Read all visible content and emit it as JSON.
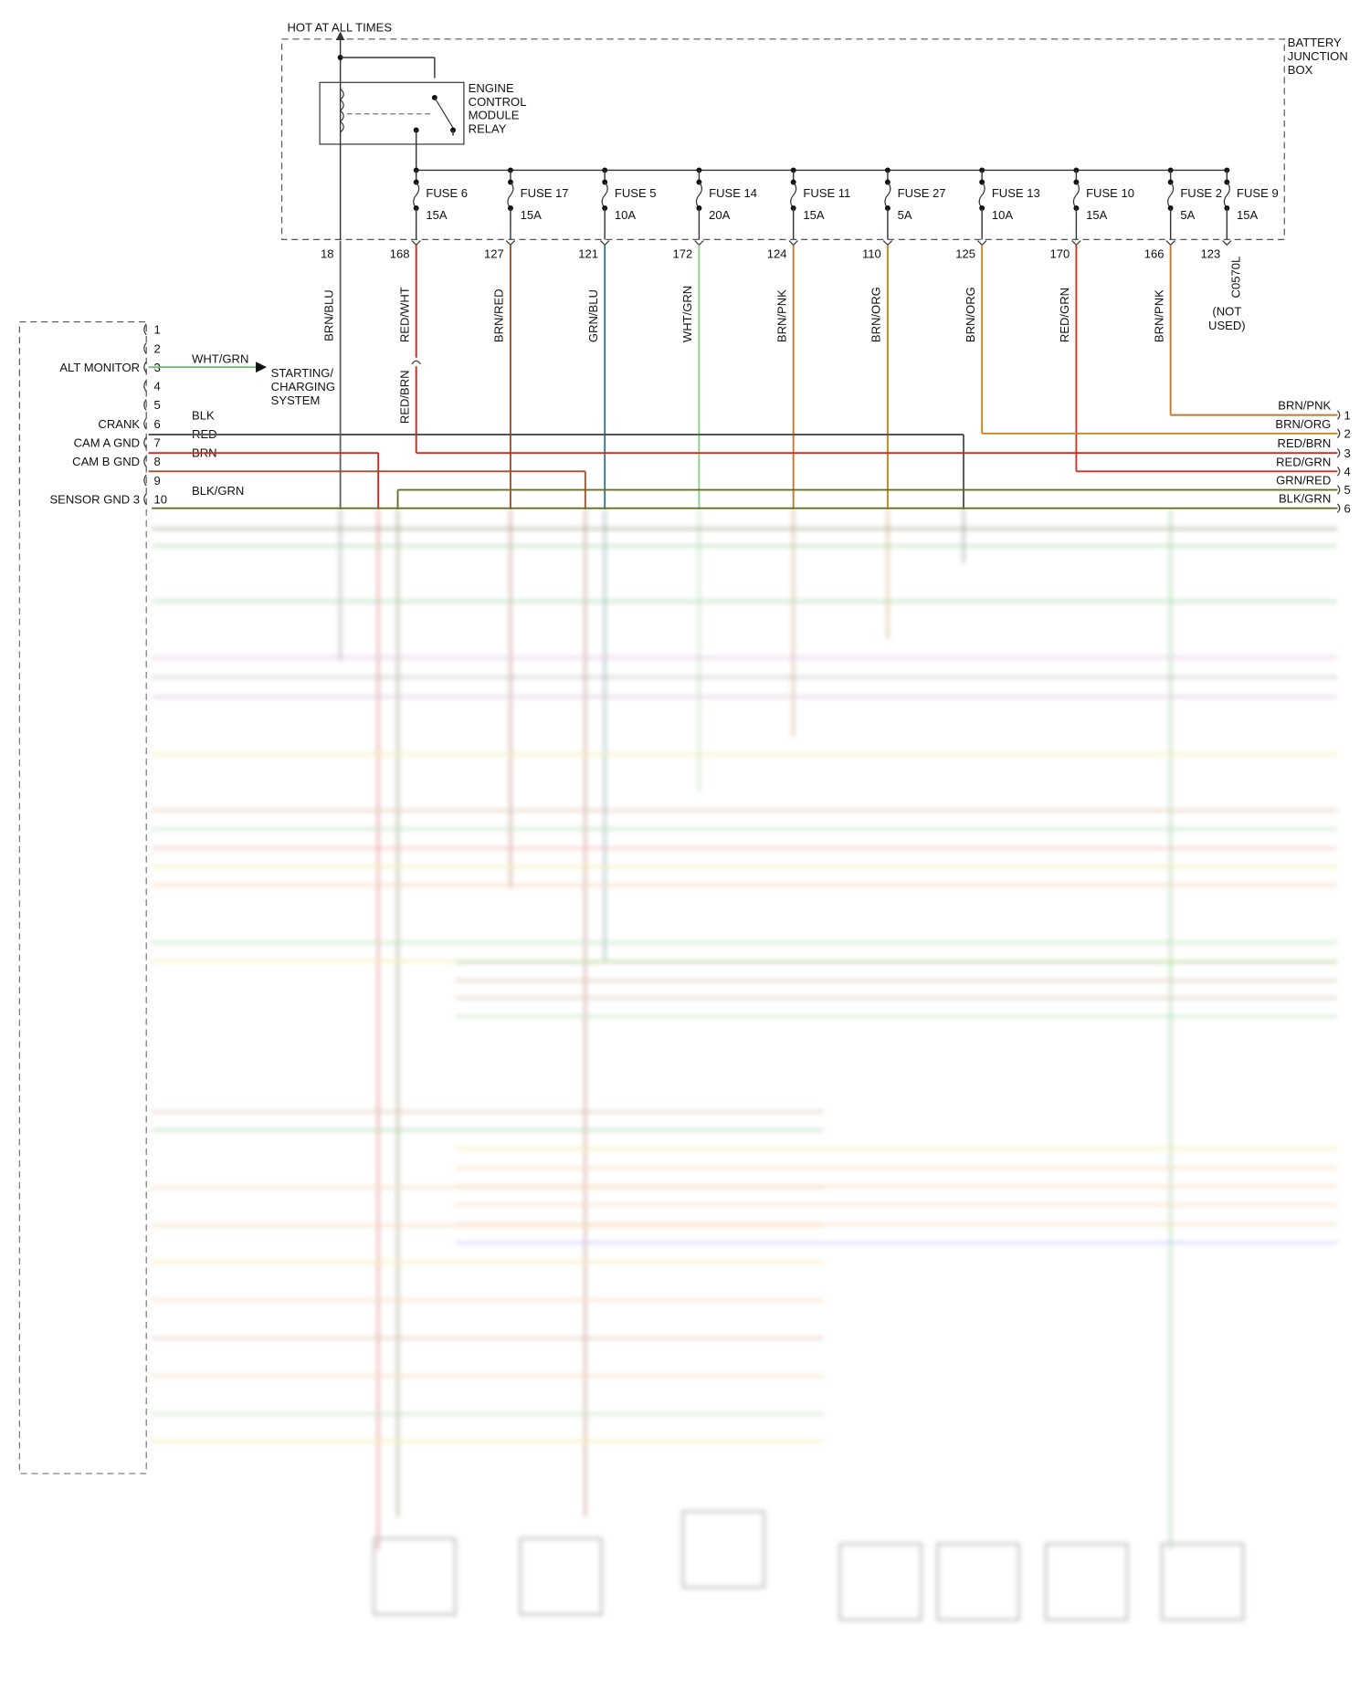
{
  "header": {
    "hot_label": "HOT AT ALL TIMES",
    "box_label": [
      "BATTERY",
      "JUNCTION",
      "BOX"
    ]
  },
  "relay": {
    "label": [
      "ENGINE",
      "CONTROL",
      "MODULE",
      "RELAY"
    ],
    "pin": "18",
    "wire": "BRN/BLU",
    "color": "#666666"
  },
  "fuses": [
    {
      "name": "FUSE 6",
      "rating": "15A",
      "pin": "168",
      "wire": "RED/WHT",
      "color": "#d9261c"
    },
    {
      "name": "FUSE 17",
      "rating": "15A",
      "pin": "127",
      "wire": "BRN/RED",
      "color": "#a0522d"
    },
    {
      "name": "FUSE 5",
      "rating": "10A",
      "pin": "121",
      "wire": "GRN/BLU",
      "color": "#2a7f8f"
    },
    {
      "name": "FUSE 14",
      "rating": "20A",
      "pin": "172",
      "wire": "WHT/GRN",
      "color": "#8fce8f"
    },
    {
      "name": "FUSE 11",
      "rating": "15A",
      "pin": "124",
      "wire": "BRN/PNK",
      "color": "#c07a30"
    },
    {
      "name": "FUSE 27",
      "rating": "5A",
      "pin": "110",
      "wire": "BRN/ORG",
      "color": "#c9861a"
    },
    {
      "name": "FUSE 13",
      "rating": "10A",
      "pin": "125",
      "wire": "BRN/ORG",
      "color": "#c9861a"
    },
    {
      "name": "FUSE 10",
      "rating": "15A",
      "pin": "170",
      "wire": "RED/GRN",
      "color": "#d9301c"
    },
    {
      "name": "FUSE 2",
      "rating": "5A",
      "pin": "166",
      "wire": "BRN/PNK",
      "color": "#c07a30"
    },
    {
      "name": "FUSE 9",
      "rating": "15A",
      "pin": "123",
      "connector": "C0570L",
      "note": [
        "(NOT",
        "USED)"
      ]
    }
  ],
  "splice": {
    "wire": "RED/BRN"
  },
  "pcm": {
    "pins": [
      {
        "num": "1"
      },
      {
        "num": "2"
      },
      {
        "num": "3",
        "label": "ALT MONITOR",
        "wire": "WHT/GRN",
        "color": "#6cbf6c"
      },
      {
        "num": "4"
      },
      {
        "num": "5"
      },
      {
        "num": "6",
        "label": "CRANK",
        "wire": "BLK",
        "color": "#555555"
      },
      {
        "num": "7",
        "label": "CAM A GND",
        "wire": "RED",
        "color": "#d9261c"
      },
      {
        "num": "8",
        "label": "CAM B GND",
        "wire": "BRN",
        "color": "#a0522d"
      },
      {
        "num": "9"
      },
      {
        "num": "10",
        "label": "SENSOR GND 3",
        "wire": "BLK/GRN",
        "color": "#6b6b2a"
      }
    ]
  },
  "charging": [
    "STARTING/",
    "CHARGING",
    "SYSTEM"
  ],
  "right_pins": [
    {
      "num": "1",
      "wire": "BRN/PNK",
      "color": "#c07a30"
    },
    {
      "num": "2",
      "wire": "BRN/ORG",
      "color": "#c9861a"
    },
    {
      "num": "3",
      "wire": "RED/BRN",
      "color": "#d9261c"
    },
    {
      "num": "4",
      "wire": "RED/GRN",
      "color": "#d9301c"
    },
    {
      "num": "5",
      "wire": "GRN/RED",
      "color": "#6b6b2a"
    },
    {
      "num": "6",
      "wire": "BLK/GRN",
      "color": "#6b6b2a"
    }
  ]
}
